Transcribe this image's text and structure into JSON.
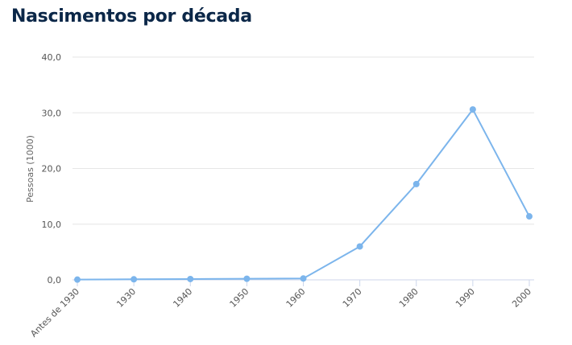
{
  "header": {
    "title": "Nascimentos por década"
  },
  "chart_data": {
    "type": "line",
    "title": "Nascimentos por década",
    "xlabel": "",
    "ylabel": "Pessoas (1000)",
    "ylim": [
      0,
      40
    ],
    "yticks": [
      0,
      10,
      20,
      30,
      40
    ],
    "ytick_labels": [
      "0,0",
      "10,0",
      "20,0",
      "30,0",
      "40,0"
    ],
    "categories": [
      "Antes de 1930",
      "1930",
      "1940",
      "1950",
      "1960",
      "1970",
      "1980",
      "1990",
      "2000"
    ],
    "series": [
      {
        "values": [
          0.05,
          0.1,
          0.15,
          0.2,
          0.25,
          6.0,
          17.2,
          30.6,
          11.4
        ]
      }
    ],
    "grid": true,
    "legend": "none",
    "colors": {
      "line": "#7cb5ec",
      "grid": "#e6e6e6",
      "axis": "#ccd6eb"
    }
  }
}
